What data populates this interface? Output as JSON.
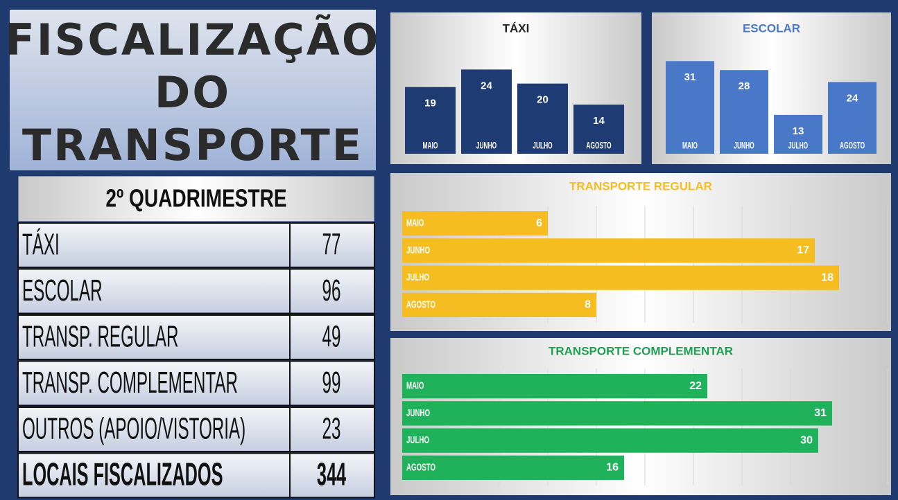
{
  "header": {
    "title": [
      "FISCALIZAÇÃO",
      "DO",
      "TRANSPORTE"
    ]
  },
  "table": {
    "header": "2º QUADRIMESTRE",
    "rows": [
      [
        "TÁXI",
        "77"
      ],
      [
        "ESCOLAR",
        "96"
      ],
      [
        "TRANSP. REGULAR",
        "49"
      ],
      [
        "TRANSP. COMPLEMENTAR",
        "99"
      ],
      [
        "OUTROS (APOIO/VISTORIA)",
        "23"
      ],
      [
        "LOCAIS FISCALIZADOS",
        "344"
      ]
    ]
  },
  "chart_data": [
    {
      "type": "bar",
      "orientation": "vertical",
      "title": "TÁXI",
      "title_color": "#222222",
      "color": "#1f3b73",
      "categories": [
        "MAIO",
        "JUNHO",
        "JULHO",
        "AGOSTO"
      ],
      "values": [
        19,
        24,
        20,
        14
      ],
      "ylim": [
        0,
        30
      ]
    },
    {
      "type": "bar",
      "orientation": "vertical",
      "title": "ESCOLAR",
      "title_color": "#4a78c8",
      "color": "#4a78c8",
      "categories": [
        "MAIO",
        "JUNHO",
        "JULHO",
        "AGOSTO"
      ],
      "values": [
        31,
        28,
        13,
        24
      ],
      "ylim": [
        0,
        35
      ]
    },
    {
      "type": "bar",
      "orientation": "horizontal",
      "title": "TRANSPORTE REGULAR",
      "title_color": "#f5bd1f",
      "color": "#f5bd1f",
      "categories": [
        "MAIO",
        "JUNHO",
        "JULHO",
        "AGOSTO"
      ],
      "values": [
        6,
        17,
        18,
        8
      ],
      "xlim": [
        0,
        20
      ]
    },
    {
      "type": "bar",
      "orientation": "horizontal",
      "title": "TRANSPORTE COMPLEMENTAR",
      "title_color": "#1fa050",
      "color": "#1fb25a",
      "categories": [
        "MAIO",
        "JUNHO",
        "JULHO",
        "AGOSTO"
      ],
      "values": [
        22,
        31,
        30,
        16
      ],
      "xlim": [
        0,
        35
      ]
    }
  ]
}
